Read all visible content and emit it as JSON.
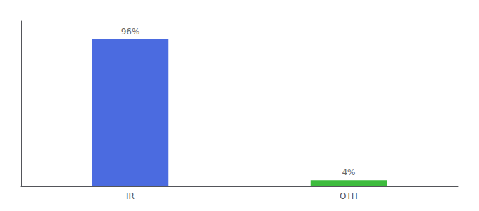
{
  "chart_data": {
    "type": "bar",
    "categories": [
      "IR",
      "OTH"
    ],
    "values": [
      96,
      4
    ],
    "value_labels": [
      "96%",
      "4%"
    ],
    "colors": [
      "#4b6be0",
      "#3dbb3d"
    ],
    "ylim": [
      0,
      108
    ],
    "grid": false,
    "data_labels": true,
    "tick_labels": "x"
  }
}
